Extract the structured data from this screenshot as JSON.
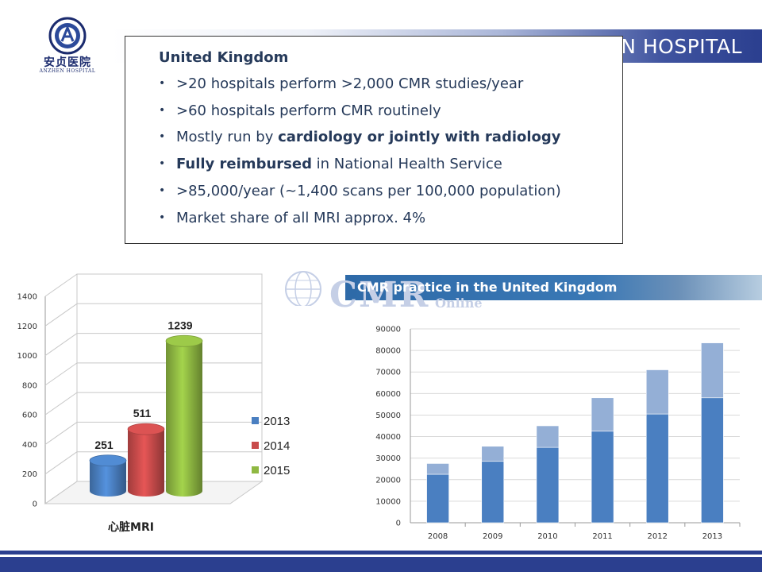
{
  "header": {
    "title": "ANZHEN HOSPITAL"
  },
  "logo": {
    "cn": "安贞医院",
    "en": "ANZHEN HOSPITAL"
  },
  "info_box": {
    "heading": "United Kingdom",
    "bullets": [
      [
        {
          "t": ">20 hospitals perform >2,000 CMR studies/year",
          "b": false
        }
      ],
      [
        {
          "t": ">60 hospitals perform CMR routinely",
          "b": false
        }
      ],
      [
        {
          "t": "Mostly run by ",
          "b": false
        },
        {
          "t": "cardiology or jointly with radiology",
          "b": true
        }
      ],
      [
        {
          "t": "Fully reimbursed",
          "b": true
        },
        {
          "t": " in National Health Service",
          "b": false
        }
      ],
      [
        {
          "t": ">85,000/year (~1,400 scans per 100,000 population)",
          "b": false
        }
      ],
      [
        {
          "t": "Market share of all MRI approx. 4%",
          "b": false
        }
      ]
    ]
  },
  "uk_banner": {
    "title": "CMR practice in the United Kingdom",
    "watermark": "CMR",
    "watermark_sub": "Online"
  },
  "chart_data": [
    {
      "type": "bar",
      "style": "3d-cylinder",
      "categories": [
        "心脏MRI"
      ],
      "series": [
        {
          "name": "2013",
          "values": [
            251
          ],
          "color": "#4a7fc1"
        },
        {
          "name": "2014",
          "values": [
            511
          ],
          "color": "#c84b4b"
        },
        {
          "name": "2015",
          "values": [
            1239
          ],
          "color": "#8fb842"
        }
      ],
      "ylim": [
        0,
        1400
      ],
      "yticks": [
        0,
        200,
        400,
        600,
        800,
        1000,
        1200,
        1400
      ],
      "data_labels": true,
      "legend": "right",
      "grid": true
    },
    {
      "type": "bar",
      "stacked": true,
      "categories": [
        "2008",
        "2009",
        "2010",
        "2011",
        "2012",
        "2013"
      ],
      "series": [
        {
          "values": [
            22500,
            28500,
            35000,
            42500,
            50500,
            58000
          ],
          "color": "#4a7fc1"
        },
        {
          "values": [
            5000,
            7000,
            10000,
            15500,
            20500,
            25500
          ],
          "color": "#94afd6"
        }
      ],
      "ylim": [
        0,
        90000
      ],
      "yticks": [
        0,
        10000,
        20000,
        30000,
        40000,
        50000,
        60000,
        70000,
        80000,
        90000
      ],
      "grid": true,
      "legend": "none"
    }
  ]
}
